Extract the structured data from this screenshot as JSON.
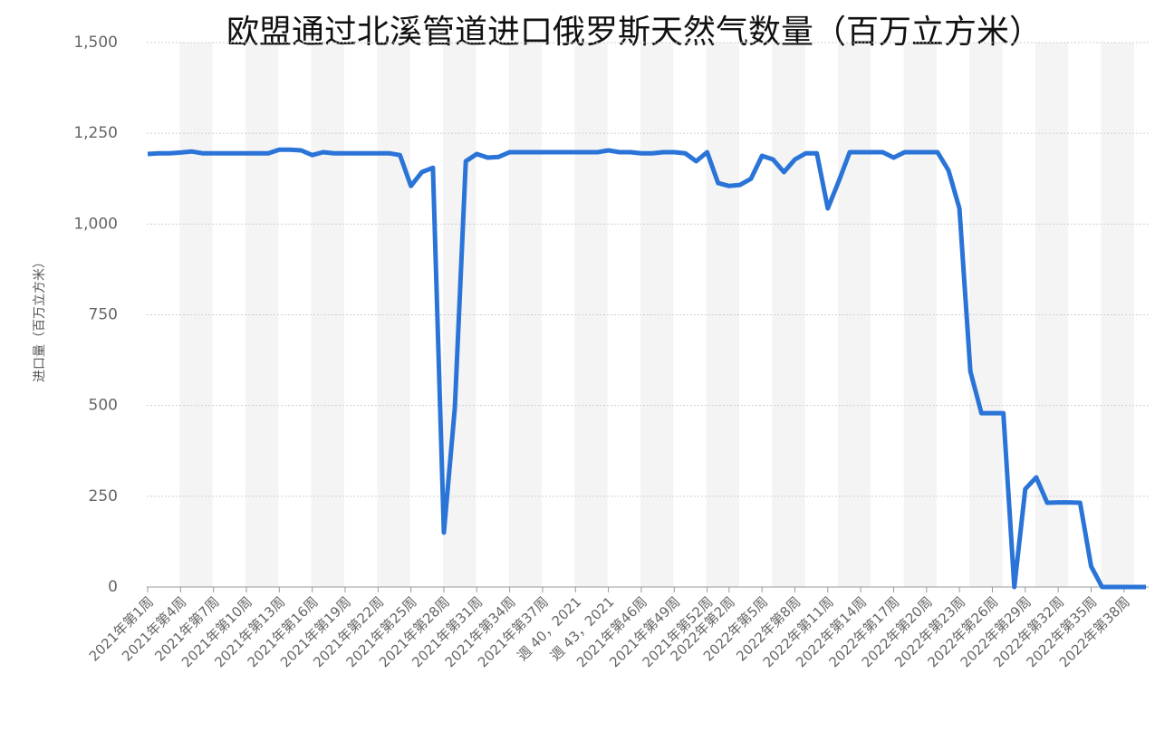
{
  "chart_data": {
    "type": "line",
    "title": "欧盟通过北溪管道进口俄罗斯天然气数量（百万立方米）",
    "y_label": "进口量（百万立方米）",
    "categories": [
      "2021年第1周",
      null,
      null,
      "2021年第4周",
      null,
      null,
      "2021年第7周",
      null,
      null,
      "2021年第10周",
      null,
      null,
      "2021年第13周",
      null,
      null,
      "2021年第16周",
      null,
      null,
      "2021年第19周",
      null,
      null,
      "2021年第22周",
      null,
      null,
      "2021年第25周",
      null,
      null,
      "2021年第28周",
      null,
      null,
      "2021年第31周",
      null,
      null,
      "2021年第34周",
      null,
      null,
      "2021年第37周",
      null,
      null,
      "週 40，2021",
      null,
      null,
      "週 43，2021",
      null,
      null,
      "2021年第46周",
      null,
      null,
      "2021年第49周",
      null,
      null,
      "2021年第52周",
      null,
      "2022年第2周",
      null,
      null,
      "2022年第5周",
      null,
      null,
      "2022年第8周",
      null,
      null,
      "2022年第11周",
      null,
      null,
      "2022年第14周",
      null,
      null,
      "2022年第17周",
      null,
      null,
      "2022年第20周",
      null,
      null,
      "2022年第23周",
      null,
      null,
      "2022年第26周",
      null,
      null,
      "2022年第29周",
      null,
      null,
      "2022年第32周",
      null,
      null,
      "2022年第35周",
      null,
      null,
      "2022年第38周",
      null,
      null
    ],
    "values": [
      1193,
      1195,
      1195,
      1197,
      1200,
      1195,
      1195,
      1195,
      1195,
      1195,
      1195,
      1195,
      1205,
      1205,
      1203,
      1190,
      1198,
      1195,
      1195,
      1195,
      1195,
      1195,
      1195,
      1190,
      1105,
      1143,
      1155,
      150,
      494,
      1173,
      1193,
      1183,
      1185,
      1198,
      1198,
      1198,
      1198,
      1198,
      1198,
      1198,
      1198,
      1198,
      1203,
      1198,
      1198,
      1195,
      1195,
      1198,
      1198,
      1195,
      1173,
      1198,
      1113,
      1105,
      1108,
      1125,
      1188,
      1178,
      1143,
      1178,
      1195,
      1195,
      1043,
      1118,
      1198,
      1198,
      1198,
      1198,
      1183,
      1198,
      1198,
      1198,
      1198,
      1148,
      1043,
      594,
      479,
      479,
      479,
      0,
      270,
      302,
      232,
      233,
      233,
      232,
      57,
      0,
      0,
      0,
      0,
      0
    ],
    "color": "#2a74d8",
    "ylim": [
      0,
      1500
    ],
    "yticks": [
      0,
      250,
      500,
      750,
      {
        "value": 1000,
        "label": "1,000"
      },
      {
        "value": 1250,
        "label": "1,250"
      },
      {
        "value": 1500,
        "label": "1,500"
      }
    ],
    "grid": true
  }
}
